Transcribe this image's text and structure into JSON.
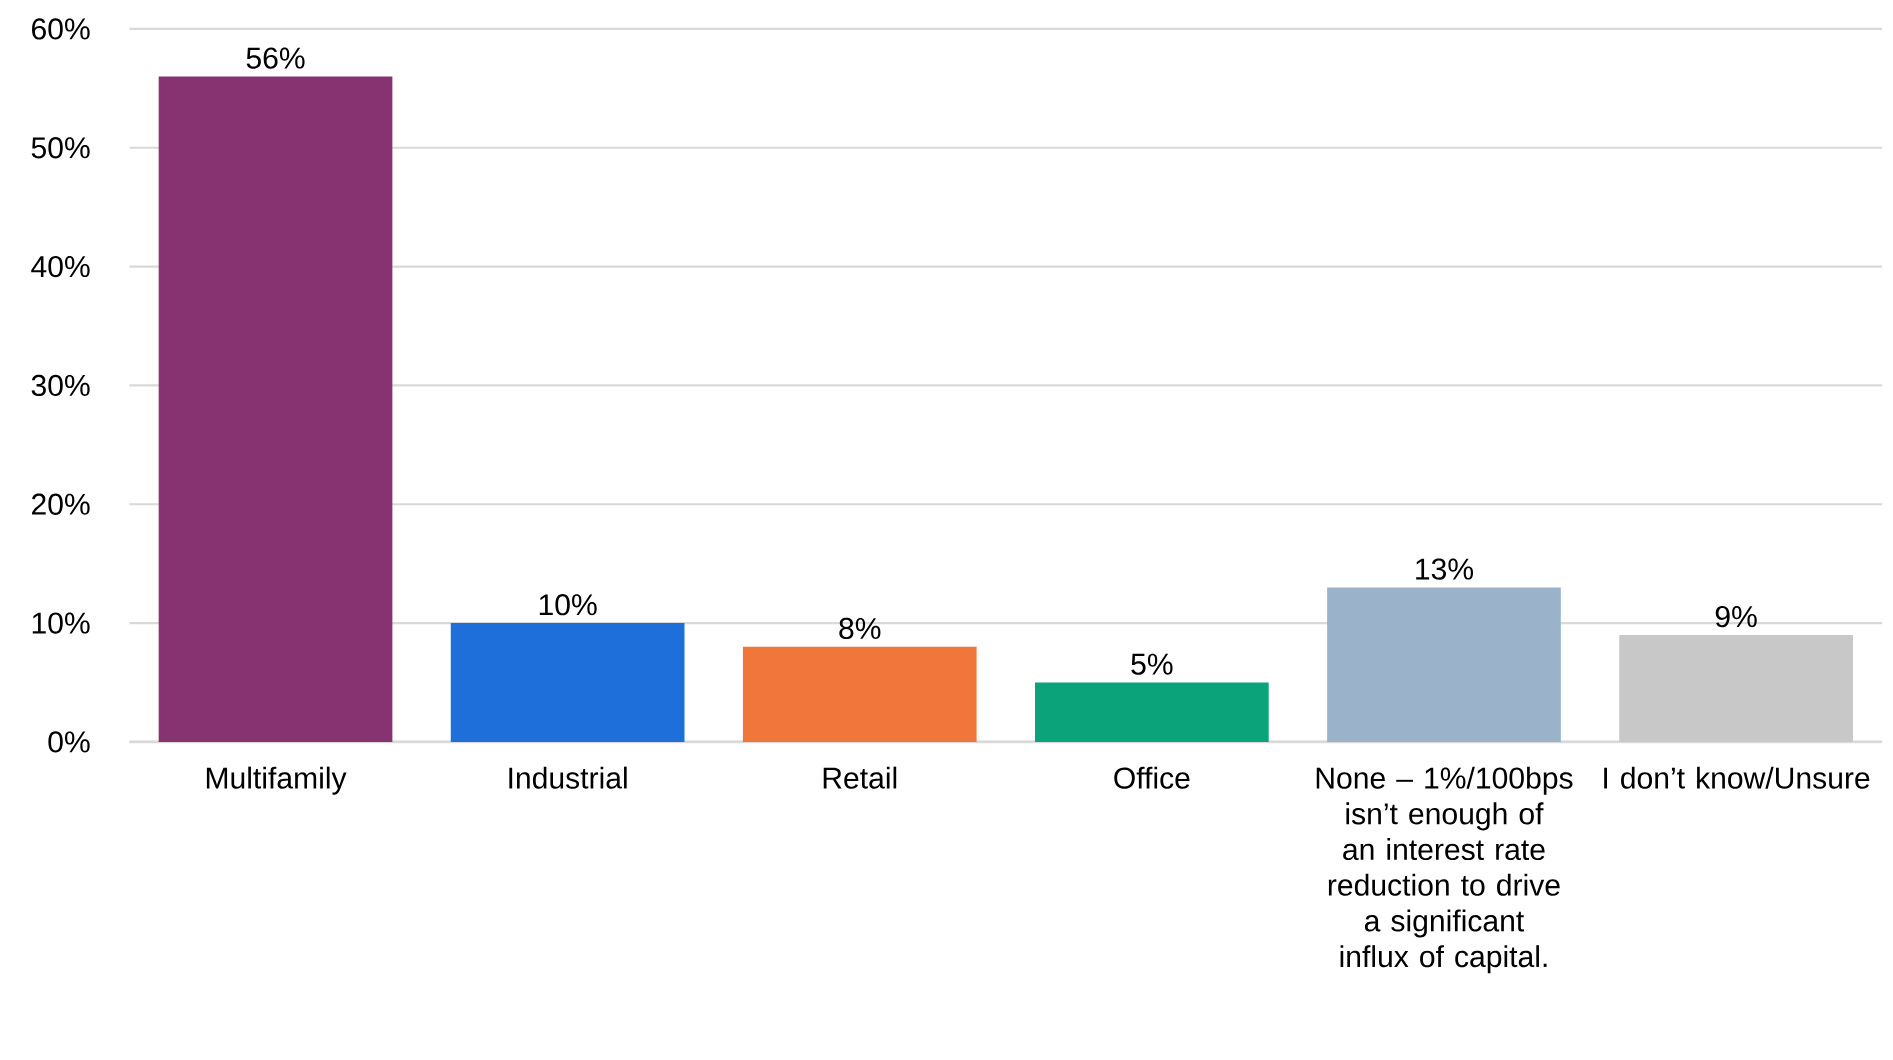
{
  "chart_data": {
    "type": "bar",
    "categories": [
      "Multifamily",
      "Industrial",
      "Retail",
      "Office",
      "None – 1%/100bps isn’t enough of an interest rate reduction to drive a significant influx of capital.",
      "I don’t know/Unsure"
    ],
    "values": [
      56,
      10,
      8,
      5,
      13,
      9
    ],
    "value_labels": [
      "56%",
      "10%",
      "8%",
      "5%",
      "13%",
      "9%"
    ],
    "colors": [
      "#873372",
      "#1f6fdb",
      "#f0763c",
      "#0aa37a",
      "#9ab3cb",
      "#c8c8c8"
    ],
    "ylim": [
      0,
      60
    ],
    "yticks": [
      {
        "value": 0,
        "label": "0%"
      },
      {
        "value": 10,
        "label": "10%"
      },
      {
        "value": 20,
        "label": "20%"
      },
      {
        "value": 30,
        "label": "30%"
      },
      {
        "value": 40,
        "label": "40%"
      },
      {
        "value": 50,
        "label": "50%"
      },
      {
        "value": 60,
        "label": "60%"
      }
    ],
    "grid": "y"
  }
}
